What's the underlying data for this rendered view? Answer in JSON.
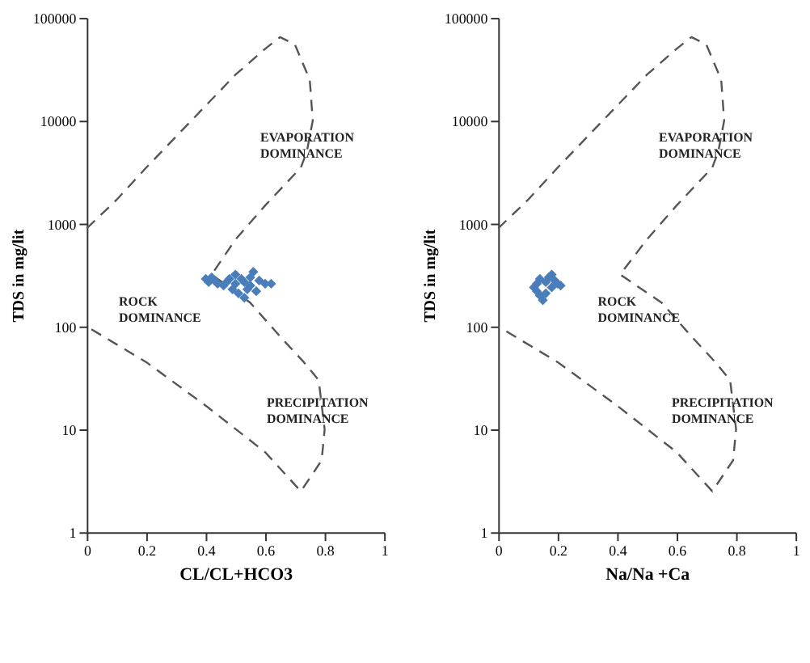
{
  "chart_data": [
    {
      "type": "scatter",
      "xlabel": "CL/CL+HCO3",
      "ylabel": "TDS in mg/lit",
      "log": "y",
      "xlim": [
        0,
        1
      ],
      "ylim": [
        1,
        100000
      ],
      "xticks": [
        0,
        0.2,
        0.4,
        0.6,
        0.8,
        1
      ],
      "yticks": [
        1,
        10,
        100,
        1000,
        10000,
        100000
      ],
      "grid": false,
      "annotations": [
        "EVAPORATION DOMINANCE",
        "ROCK DOMINANCE",
        "PRECIPITATION DOMINANCE"
      ],
      "series": [
        {
          "type": "line",
          "line_style": "dashed",
          "color": "#555555",
          "x": [
            0,
            0.1,
            0.2,
            0.3,
            0.4,
            0.5,
            0.6,
            0.65,
            0.7,
            0.75,
            0.76,
            0.74,
            0.72,
            0.6,
            0.5,
            0.42,
            0.55,
            0.65,
            0.73,
            0.78,
            0.8,
            0.79,
            0.72,
            0.6,
            0.4,
            0.2,
            0
          ],
          "values": [
            900,
            1700,
            3500,
            7000,
            14000,
            28000,
            50000,
            65000,
            55000,
            25000,
            10000,
            5000,
            3500,
            1500,
            700,
            320,
            170,
            80,
            45,
            30,
            10,
            5,
            2.5,
            6,
            17,
            45,
            100
          ]
        },
        {
          "marker": "diamond",
          "color": "#4a7ebb",
          "x": [
            0.4,
            0.41,
            0.42,
            0.43,
            0.46,
            0.47,
            0.48,
            0.49,
            0.5,
            0.5,
            0.51,
            0.52,
            0.53,
            0.53,
            0.54,
            0.55,
            0.55,
            0.56,
            0.57,
            0.58,
            0.6,
            0.62,
            0.44
          ],
          "values": [
            290,
            270,
            300,
            280,
            250,
            270,
            290,
            230,
            260,
            320,
            210,
            290,
            190,
            270,
            230,
            300,
            250,
            340,
            220,
            280,
            260,
            260,
            260
          ]
        }
      ]
    },
    {
      "type": "scatter",
      "xlabel": "Na/Na +Ca",
      "ylabel": "TDS in mg/lit",
      "log": "y",
      "xlim": [
        0,
        1
      ],
      "ylim": [
        1,
        100000
      ],
      "xticks": [
        0,
        0.2,
        0.4,
        0.6,
        0.8,
        1
      ],
      "yticks": [
        1,
        10,
        100,
        1000,
        10000,
        100000
      ],
      "grid": false,
      "annotations": [
        "EVAPORATION DOMINANCE",
        "ROCK DOMINANCE",
        "PRECIPITATION DOMINANCE"
      ],
      "series": [
        {
          "type": "line",
          "line_style": "dashed",
          "color": "#555555",
          "x": [
            0,
            0.1,
            0.2,
            0.3,
            0.4,
            0.5,
            0.6,
            0.65,
            0.7,
            0.75,
            0.76,
            0.74,
            0.72,
            0.6,
            0.5,
            0.41,
            0.55,
            0.65,
            0.73,
            0.78,
            0.8,
            0.79,
            0.72,
            0.6,
            0.4,
            0.2,
            0
          ],
          "values": [
            900,
            1700,
            3500,
            7000,
            14000,
            28000,
            50000,
            65000,
            55000,
            25000,
            10000,
            5000,
            3500,
            1500,
            700,
            320,
            170,
            80,
            45,
            30,
            10,
            5,
            2.5,
            6,
            17,
            45,
            100
          ]
        },
        {
          "marker": "diamond",
          "color": "#4a7ebb",
          "x": [
            0.12,
            0.13,
            0.13,
            0.14,
            0.15,
            0.16,
            0.16,
            0.17,
            0.18,
            0.18,
            0.19,
            0.2,
            0.21,
            0.14
          ],
          "values": [
            240,
            220,
            260,
            200,
            180,
            270,
            210,
            300,
            320,
            240,
            280,
            260,
            250,
            290
          ]
        }
      ]
    }
  ]
}
